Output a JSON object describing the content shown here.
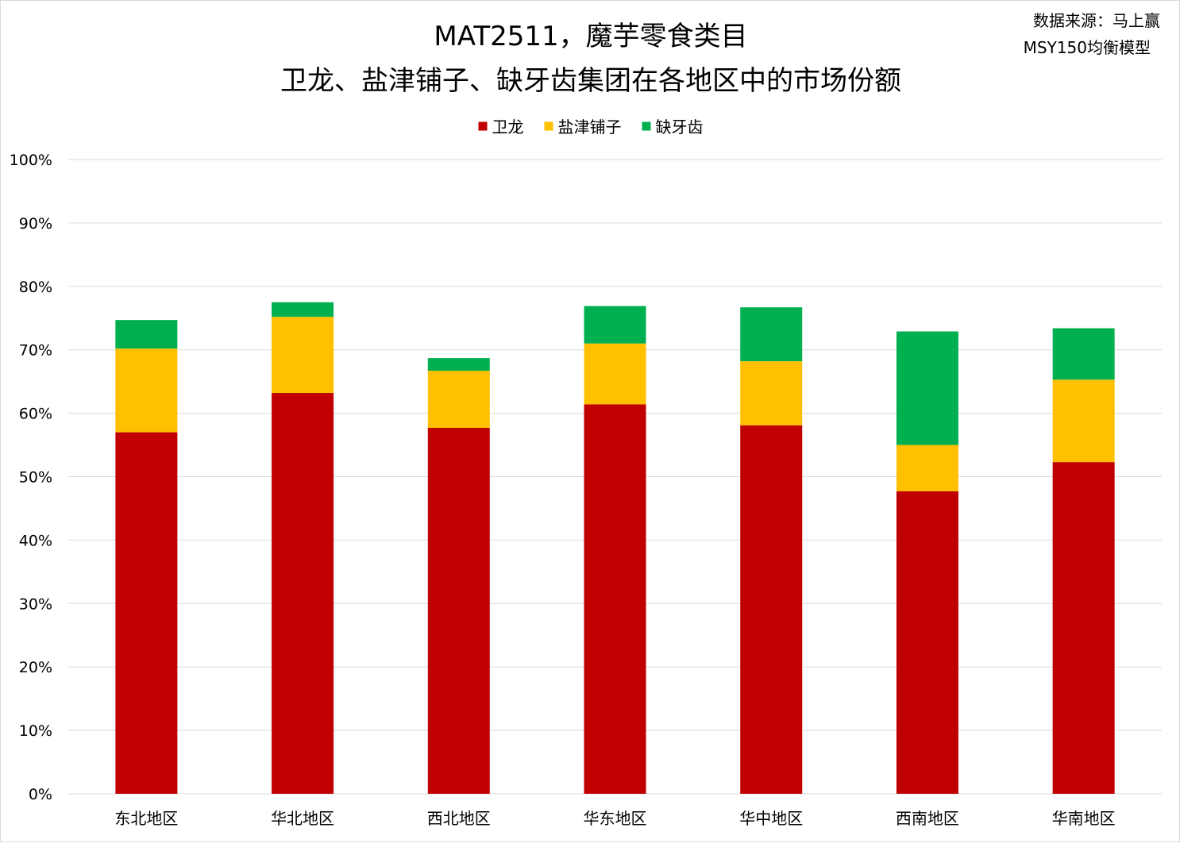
{
  "chart_data": {
    "type": "bar",
    "stacked": true,
    "title": "MAT2511，魔芋零食类目",
    "subtitle": "卫龙、盐津铺子、缺牙齿集团在各地区中的市场份额",
    "source_line1": "数据来源：马上赢",
    "source_line2": "MSY150均衡模型",
    "categories": [
      "东北地区",
      "华北地区",
      "西北地区",
      "华东地区",
      "华中地区",
      "西南地区",
      "华南地区"
    ],
    "series": [
      {
        "name": "卫龙",
        "color": "#C00000",
        "values": [
          57.0,
          63.2,
          57.7,
          61.4,
          58.1,
          47.7,
          52.3
        ]
      },
      {
        "name": "盐津铺子",
        "color": "#FFC000",
        "values": [
          13.2,
          12.0,
          9.0,
          9.6,
          10.1,
          7.3,
          13.0
        ]
      },
      {
        "name": "缺牙齿",
        "color": "#00B050",
        "values": [
          4.5,
          2.3,
          2.0,
          5.9,
          8.5,
          17.9,
          8.1
        ]
      }
    ],
    "yticks": [
      "0%",
      "10%",
      "20%",
      "30%",
      "40%",
      "50%",
      "60%",
      "70%",
      "80%",
      "90%",
      "100%"
    ],
    "ylim": [
      0,
      100
    ],
    "legend_position": "top-center",
    "grid": true
  }
}
